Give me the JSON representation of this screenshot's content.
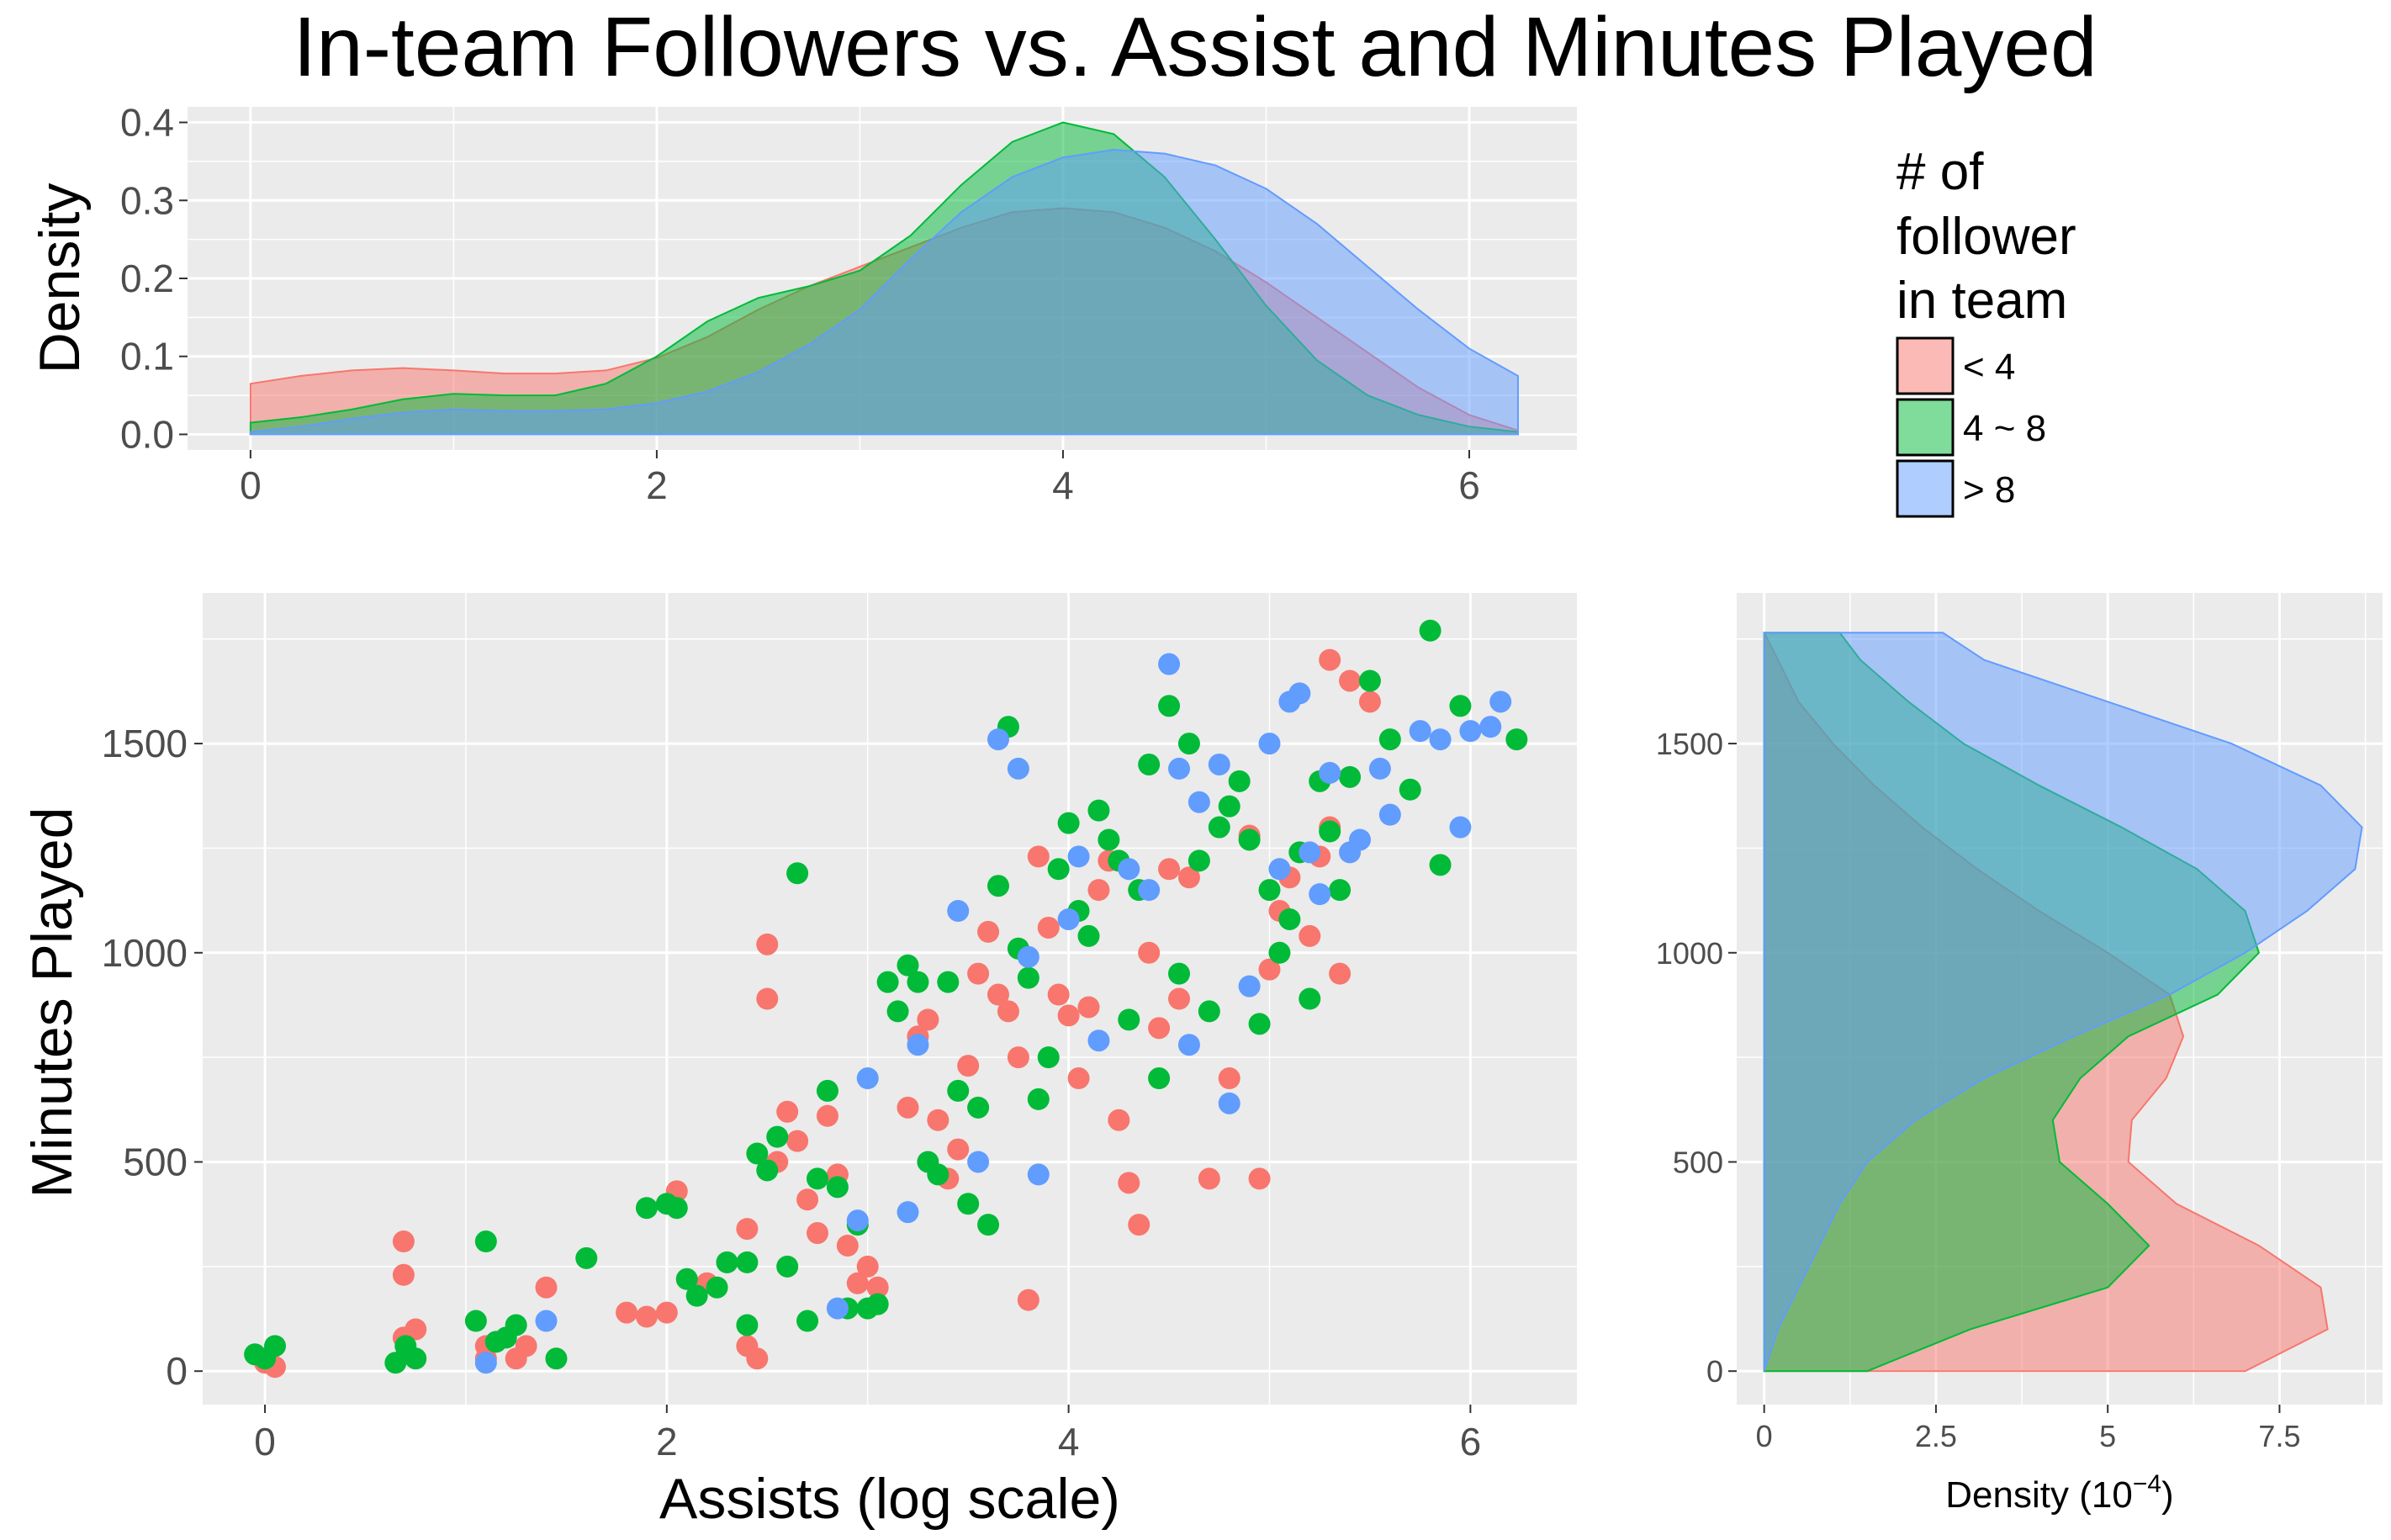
{
  "title": "In-team Followers vs. Assist and Minutes Played",
  "legend": {
    "title_lines": [
      "# of",
      "follower",
      "in team"
    ],
    "entries": [
      {
        "label": "< 4",
        "color": "#F8766D"
      },
      {
        "label": "4 ~ 8",
        "color": "#00BA38"
      },
      {
        "label": "> 8",
        "color": "#619CFF"
      }
    ]
  },
  "chart_data": [
    {
      "type": "area",
      "panel": "top-marginal-density",
      "xlabel": "",
      "ylabel": "Density",
      "xlim": [
        -0.31,
        6.53
      ],
      "ylim": [
        -0.02,
        0.42
      ],
      "xticks": [
        0,
        2,
        4,
        6
      ],
      "yticks": [
        0.0,
        0.1,
        0.2,
        0.3,
        0.4
      ],
      "ytick_labels": [
        "0.0",
        "0.1",
        "0.2",
        "0.3",
        "0.4"
      ],
      "grid": true,
      "x": [
        0,
        0.25,
        0.5,
        0.75,
        1,
        1.25,
        1.5,
        1.75,
        2,
        2.25,
        2.5,
        2.75,
        3,
        3.25,
        3.5,
        3.75,
        4,
        4.25,
        4.5,
        4.75,
        5,
        5.25,
        5.5,
        5.75,
        6,
        6.24
      ],
      "series": [
        {
          "name": "< 4",
          "color": "#F8766D",
          "values": [
            0.065,
            0.075,
            0.082,
            0.085,
            0.082,
            0.078,
            0.078,
            0.082,
            0.098,
            0.125,
            0.16,
            0.19,
            0.215,
            0.24,
            0.265,
            0.285,
            0.29,
            0.285,
            0.265,
            0.235,
            0.195,
            0.15,
            0.105,
            0.06,
            0.025,
            0.005
          ]
        },
        {
          "name": "4 ~ 8",
          "color": "#00BA38",
          "values": [
            0.015,
            0.022,
            0.032,
            0.045,
            0.052,
            0.05,
            0.05,
            0.065,
            0.1,
            0.145,
            0.175,
            0.19,
            0.21,
            0.255,
            0.32,
            0.375,
            0.4,
            0.385,
            0.33,
            0.25,
            0.165,
            0.095,
            0.05,
            0.025,
            0.01,
            0.003
          ]
        },
        {
          "name": "> 8",
          "color": "#619CFF",
          "values": [
            0.003,
            0.01,
            0.02,
            0.028,
            0.032,
            0.03,
            0.03,
            0.032,
            0.04,
            0.055,
            0.08,
            0.115,
            0.16,
            0.225,
            0.285,
            0.33,
            0.355,
            0.365,
            0.36,
            0.345,
            0.315,
            0.27,
            0.215,
            0.16,
            0.11,
            0.075
          ]
        }
      ]
    },
    {
      "type": "scatter",
      "panel": "main-scatter",
      "xlabel": "Assists (log scale)",
      "ylabel": "Minutes Played",
      "xlim": [
        -0.31,
        6.53
      ],
      "ylim": [
        -80,
        1860
      ],
      "xticks": [
        0,
        2,
        4,
        6
      ],
      "yticks": [
        0,
        500,
        1000,
        1500
      ],
      "grid": true,
      "series": [
        {
          "name": "< 4",
          "color": "#F8766D",
          "points": [
            [
              0.0,
              20
            ],
            [
              0.05,
              10
            ],
            [
              0.69,
              310
            ],
            [
              0.69,
              230
            ],
            [
              0.69,
              80
            ],
            [
              0.75,
              100
            ],
            [
              1.1,
              60
            ],
            [
              1.1,
              30
            ],
            [
              1.25,
              30
            ],
            [
              1.3,
              60
            ],
            [
              1.4,
              200
            ],
            [
              1.8,
              140
            ],
            [
              1.9,
              130
            ],
            [
              2.0,
              140
            ],
            [
              2.05,
              430
            ],
            [
              2.2,
              210
            ],
            [
              2.3,
              260
            ],
            [
              2.4,
              340
            ],
            [
              2.4,
              60
            ],
            [
              2.45,
              30
            ],
            [
              2.5,
              890
            ],
            [
              2.5,
              1020
            ],
            [
              2.55,
              500
            ],
            [
              2.6,
              620
            ],
            [
              2.65,
              550
            ],
            [
              2.7,
              410
            ],
            [
              2.75,
              330
            ],
            [
              2.8,
              610
            ],
            [
              2.85,
              470
            ],
            [
              2.9,
              300
            ],
            [
              2.95,
              210
            ],
            [
              3.0,
              250
            ],
            [
              3.05,
              200
            ],
            [
              3.2,
              630
            ],
            [
              3.25,
              800
            ],
            [
              3.3,
              840
            ],
            [
              3.35,
              600
            ],
            [
              3.4,
              460
            ],
            [
              3.45,
              530
            ],
            [
              3.5,
              730
            ],
            [
              3.55,
              950
            ],
            [
              3.6,
              1050
            ],
            [
              3.65,
              900
            ],
            [
              3.7,
              860
            ],
            [
              3.75,
              750
            ],
            [
              3.8,
              170
            ],
            [
              3.85,
              1230
            ],
            [
              3.9,
              1060
            ],
            [
              3.95,
              900
            ],
            [
              4.0,
              850
            ],
            [
              4.05,
              700
            ],
            [
              4.1,
              870
            ],
            [
              4.15,
              1150
            ],
            [
              4.2,
              1220
            ],
            [
              4.25,
              600
            ],
            [
              4.3,
              450
            ],
            [
              4.35,
              350
            ],
            [
              4.4,
              1000
            ],
            [
              4.45,
              820
            ],
            [
              4.5,
              1200
            ],
            [
              4.55,
              890
            ],
            [
              4.6,
              1180
            ],
            [
              4.7,
              460
            ],
            [
              4.8,
              700
            ],
            [
              4.9,
              1280
            ],
            [
              4.95,
              460
            ],
            [
              5.0,
              960
            ],
            [
              5.05,
              1100
            ],
            [
              5.1,
              1180
            ],
            [
              5.2,
              1040
            ],
            [
              5.25,
              1230
            ],
            [
              5.3,
              1300
            ],
            [
              5.35,
              950
            ],
            [
              5.4,
              1650
            ],
            [
              5.5,
              1600
            ],
            [
              5.3,
              1700
            ]
          ]
        },
        {
          "name": "4 ~ 8",
          "color": "#00BA38",
          "points": [
            [
              -0.05,
              40
            ],
            [
              0.0,
              30
            ],
            [
              0.05,
              60
            ],
            [
              0.65,
              20
            ],
            [
              0.7,
              60
            ],
            [
              0.75,
              30
            ],
            [
              1.05,
              120
            ],
            [
              1.1,
              310
            ],
            [
              1.15,
              70
            ],
            [
              1.2,
              80
            ],
            [
              1.25,
              110
            ],
            [
              1.45,
              30
            ],
            [
              1.6,
              270
            ],
            [
              1.9,
              390
            ],
            [
              2.0,
              400
            ],
            [
              2.05,
              390
            ],
            [
              2.1,
              220
            ],
            [
              2.15,
              180
            ],
            [
              2.25,
              200
            ],
            [
              2.3,
              260
            ],
            [
              2.4,
              260
            ],
            [
              2.4,
              110
            ],
            [
              2.45,
              520
            ],
            [
              2.5,
              480
            ],
            [
              2.55,
              560
            ],
            [
              2.6,
              250
            ],
            [
              2.65,
              1190
            ],
            [
              2.7,
              120
            ],
            [
              2.75,
              460
            ],
            [
              2.8,
              670
            ],
            [
              2.85,
              440
            ],
            [
              2.9,
              150
            ],
            [
              2.95,
              350
            ],
            [
              3.0,
              150
            ],
            [
              3.05,
              160
            ],
            [
              3.1,
              930
            ],
            [
              3.15,
              860
            ],
            [
              3.2,
              970
            ],
            [
              3.25,
              930
            ],
            [
              3.3,
              500
            ],
            [
              3.35,
              470
            ],
            [
              3.4,
              930
            ],
            [
              3.45,
              670
            ],
            [
              3.5,
              400
            ],
            [
              3.55,
              630
            ],
            [
              3.6,
              350
            ],
            [
              3.65,
              1160
            ],
            [
              3.7,
              1540
            ],
            [
              3.75,
              1010
            ],
            [
              3.8,
              940
            ],
            [
              3.85,
              650
            ],
            [
              3.9,
              750
            ],
            [
              3.95,
              1200
            ],
            [
              4.0,
              1310
            ],
            [
              4.05,
              1100
            ],
            [
              4.1,
              1040
            ],
            [
              4.15,
              1340
            ],
            [
              4.2,
              1270
            ],
            [
              4.25,
              1220
            ],
            [
              4.3,
              840
            ],
            [
              4.35,
              1150
            ],
            [
              4.4,
              1450
            ],
            [
              4.45,
              700
            ],
            [
              4.5,
              1590
            ],
            [
              4.55,
              950
            ],
            [
              4.6,
              1500
            ],
            [
              4.65,
              1220
            ],
            [
              4.7,
              860
            ],
            [
              4.75,
              1300
            ],
            [
              4.8,
              1350
            ],
            [
              4.85,
              1410
            ],
            [
              4.9,
              1270
            ],
            [
              4.95,
              830
            ],
            [
              5.0,
              1150
            ],
            [
              5.05,
              1000
            ],
            [
              5.1,
              1080
            ],
            [
              5.15,
              1240
            ],
            [
              5.2,
              890
            ],
            [
              5.25,
              1410
            ],
            [
              5.3,
              1290
            ],
            [
              5.35,
              1150
            ],
            [
              5.4,
              1420
            ],
            [
              5.5,
              1650
            ],
            [
              5.6,
              1510
            ],
            [
              5.7,
              1390
            ],
            [
              5.8,
              1770
            ],
            [
              5.85,
              1210
            ],
            [
              5.95,
              1590
            ],
            [
              6.23,
              1510
            ]
          ]
        },
        {
          "name": "> 8",
          "color": "#619CFF",
          "points": [
            [
              1.1,
              20
            ],
            [
              1.4,
              120
            ],
            [
              2.85,
              150
            ],
            [
              2.95,
              360
            ],
            [
              3.0,
              700
            ],
            [
              3.2,
              380
            ],
            [
              3.25,
              780
            ],
            [
              3.45,
              1100
            ],
            [
              3.55,
              500
            ],
            [
              3.65,
              1510
            ],
            [
              3.75,
              1440
            ],
            [
              3.8,
              990
            ],
            [
              3.85,
              470
            ],
            [
              4.0,
              1080
            ],
            [
              4.05,
              1230
            ],
            [
              4.15,
              790
            ],
            [
              4.3,
              1200
            ],
            [
              4.4,
              1150
            ],
            [
              4.5,
              1690
            ],
            [
              4.55,
              1440
            ],
            [
              4.6,
              780
            ],
            [
              4.65,
              1360
            ],
            [
              4.75,
              1450
            ],
            [
              4.8,
              640
            ],
            [
              4.9,
              920
            ],
            [
              5.0,
              1500
            ],
            [
              5.05,
              1200
            ],
            [
              5.1,
              1600
            ],
            [
              5.15,
              1620
            ],
            [
              5.2,
              1240
            ],
            [
              5.25,
              1140
            ],
            [
              5.3,
              1430
            ],
            [
              5.4,
              1240
            ],
            [
              5.45,
              1270
            ],
            [
              5.55,
              1440
            ],
            [
              5.6,
              1330
            ],
            [
              5.75,
              1530
            ],
            [
              5.85,
              1510
            ],
            [
              5.95,
              1300
            ],
            [
              6.0,
              1530
            ],
            [
              6.1,
              1540
            ],
            [
              6.15,
              1600
            ]
          ]
        }
      ]
    },
    {
      "type": "area",
      "panel": "right-marginal-density",
      "orientation": "horizontal",
      "xlabel": "Density (10",
      "xlabel_superscript": "−4",
      "xlabel_suffix": ")",
      "ylabel": "",
      "xlim": [
        -0.4,
        9.0
      ],
      "ylim": [
        -80,
        1860
      ],
      "xticks": [
        0,
        2.5,
        5,
        7.5
      ],
      "xtick_labels": [
        "0",
        "2.5",
        "5",
        "7.5"
      ],
      "yticks": [
        0,
        500,
        1000,
        1500
      ],
      "grid": true,
      "y": [
        0,
        100,
        200,
        300,
        400,
        500,
        600,
        700,
        800,
        900,
        1000,
        1100,
        1200,
        1300,
        1400,
        1500,
        1600,
        1700,
        1765
      ],
      "series": [
        {
          "name": "< 4",
          "color": "#F8766D",
          "values": [
            7.0,
            8.2,
            8.1,
            7.2,
            6.0,
            5.3,
            5.35,
            5.85,
            6.1,
            5.9,
            5.0,
            4.0,
            3.1,
            2.3,
            1.6,
            1.0,
            0.5,
            0.2,
            0.0
          ]
        },
        {
          "name": "4 ~ 8",
          "color": "#00BA38",
          "values": [
            1.5,
            3.0,
            5.0,
            5.6,
            5.0,
            4.3,
            4.2,
            4.6,
            5.3,
            6.6,
            7.2,
            7.0,
            6.3,
            5.2,
            4.0,
            2.9,
            2.1,
            1.4,
            1.1
          ]
        },
        {
          "name": "> 8",
          "color": "#619CFF",
          "values": [
            0.0,
            0.2,
            0.5,
            0.8,
            1.1,
            1.5,
            2.2,
            3.2,
            4.5,
            5.9,
            7.0,
            7.9,
            8.6,
            8.7,
            8.1,
            6.8,
            5.0,
            3.2,
            2.6
          ]
        }
      ]
    }
  ]
}
